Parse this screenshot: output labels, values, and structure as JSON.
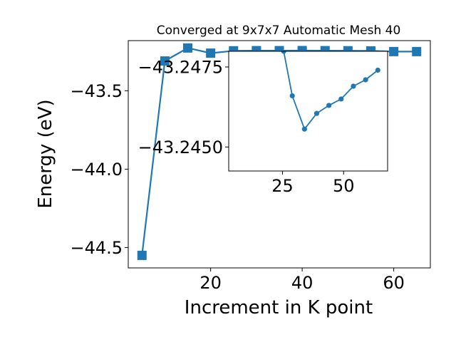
{
  "chart_data": [
    {
      "type": "line",
      "title": "Converged at 9x7x7 Automatic Mesh 40",
      "xlabel": "Increment in K point",
      "ylabel": "Energy (eV)",
      "xlim": [
        2.0,
        68.0
      ],
      "ylim": [
        -44.63,
        -43.18
      ],
      "xticks": [
        20,
        40,
        60
      ],
      "xtick_labels": [
        "20",
        "40",
        "60"
      ],
      "yticks": [
        -44.5,
        -44.0,
        -43.5
      ],
      "ytick_labels": [
        "−44.5",
        "−44.0",
        "−43.5"
      ],
      "marker": "square",
      "color": "#1f77b4",
      "grid": false,
      "series": [
        {
          "x": [
            5,
            10,
            15,
            20,
            25,
            30,
            35,
            40,
            45,
            50,
            55,
            60,
            65
          ],
          "y": [
            -44.55,
            -43.31,
            -43.227,
            -43.26,
            -43.245,
            -43.244,
            -43.244,
            -43.2435,
            -43.244,
            -43.2445,
            -43.2455,
            -43.25,
            -43.25
          ]
        }
      ]
    },
    {
      "type": "line",
      "title": "",
      "xlabel": "",
      "ylabel": "",
      "xlim": [
        3.0,
        68.0
      ],
      "ylim": [
        -43.24425,
        -43.24799
      ],
      "xticks": [
        25,
        50
      ],
      "xtick_labels": [
        "25",
        "50"
      ],
      "yticks": [
        -43.2475,
        -43.245
      ],
      "ytick_labels": [
        "−43.2475",
        "−43.2450"
      ],
      "marker": "circle",
      "color": "#1f77b4",
      "grid": false,
      "series": [
        {
          "x": [
            25.5,
            29,
            34,
            39,
            44,
            49,
            54,
            59,
            64
          ],
          "y": [
            -43.24799,
            -43.2466,
            -43.24556,
            -43.24605,
            -43.2463,
            -43.2465,
            -43.2469,
            -43.2471,
            -43.2474
          ]
        }
      ]
    }
  ]
}
